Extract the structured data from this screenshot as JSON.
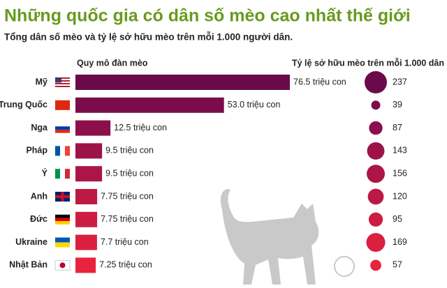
{
  "chart_data": [
    {
      "type": "bar",
      "title": "Những quốc gia có dân số mèo cao nhất thế giới",
      "subtitle": "Tổng dân số mèo và tỷ lệ sở hữu mèo trên mỗi 1.000 người dân.",
      "axis_label": "Quy mô đàn mèo",
      "categories": [
        "Mỹ",
        "Trung Quốc",
        "Nga",
        "Pháp",
        "Ý",
        "Anh",
        "Đức",
        "Ukraine",
        "Nhật Bản"
      ],
      "values": [
        76.5,
        53.0,
        12.5,
        9.5,
        9.5,
        7.75,
        7.75,
        7.7,
        7.25
      ],
      "value_labels": [
        "76.5 triệu con",
        "53.0 triệu con",
        "12.5 triệu con",
        "9.5 triệu con",
        "9.5 triệu con",
        "7.75 triệu con",
        "7.75 triệu con",
        "7.7 triệu con",
        "7.25 triệu con"
      ],
      "colors": [
        "#6b0a4b",
        "#7a0c4c",
        "#8c0f4b",
        "#9c1249",
        "#ad1547",
        "#bd1945",
        "#cd1c42",
        "#db1f3f",
        "#e8233c"
      ]
    },
    {
      "type": "bubble",
      "title": "Tỷ lệ sở hữu mèo trên mỗi 1.000 dân",
      "values": [
        237,
        39,
        87,
        143,
        156,
        120,
        95,
        169,
        57
      ],
      "colors": [
        "#6b0a4b",
        "#7a0c4c",
        "#8c0f4b",
        "#9c1249",
        "#ad1547",
        "#bd1945",
        "#cd1c42",
        "#db1f3f",
        "#e8233c"
      ]
    }
  ]
}
